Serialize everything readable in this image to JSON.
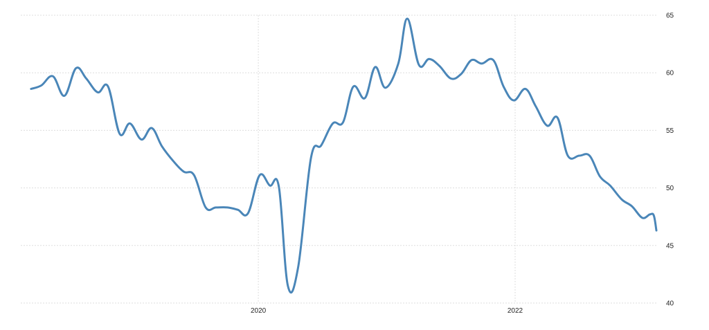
{
  "chart_data": {
    "type": "line",
    "title": "",
    "xlabel": "",
    "ylabel": "",
    "x_range": [
      2018.15,
      2023.1
    ],
    "ylim": [
      40,
      65
    ],
    "y_ticks": [
      40,
      45,
      50,
      55,
      60,
      65
    ],
    "x_ticks": [
      2020,
      2022
    ],
    "x_tick_labels": [
      "2020",
      "2022"
    ],
    "y_tick_labels": [
      "40",
      "45",
      "50",
      "55",
      "60",
      "65"
    ],
    "grid": true,
    "legend": "none",
    "colors": {
      "line": "#4a86b8",
      "grid": "#dddddd",
      "text": "#222222"
    },
    "series": [
      {
        "values": [
          [
            2018.23,
            58.6
          ],
          [
            2018.31,
            58.9
          ],
          [
            2018.4,
            59.7
          ],
          [
            2018.49,
            58.0
          ],
          [
            2018.58,
            60.4
          ],
          [
            2018.66,
            59.5
          ],
          [
            2018.75,
            58.3
          ],
          [
            2018.83,
            58.8
          ],
          [
            2018.92,
            54.7
          ],
          [
            2019.0,
            55.6
          ],
          [
            2019.09,
            54.2
          ],
          [
            2019.17,
            55.2
          ],
          [
            2019.25,
            53.6
          ],
          [
            2019.34,
            52.3
          ],
          [
            2019.42,
            51.4
          ],
          [
            2019.5,
            51.1
          ],
          [
            2019.59,
            48.3
          ],
          [
            2019.67,
            48.3
          ],
          [
            2019.76,
            48.3
          ],
          [
            2019.84,
            48.1
          ],
          [
            2019.92,
            47.8
          ],
          [
            2020.01,
            51.1
          ],
          [
            2020.09,
            50.2
          ],
          [
            2020.16,
            50.1
          ],
          [
            2020.23,
            41.5
          ],
          [
            2020.31,
            43.1
          ],
          [
            2020.41,
            52.6
          ],
          [
            2020.49,
            53.7
          ],
          [
            2020.58,
            55.6
          ],
          [
            2020.66,
            55.7
          ],
          [
            2020.74,
            58.8
          ],
          [
            2020.83,
            57.8
          ],
          [
            2020.91,
            60.5
          ],
          [
            2020.99,
            58.7
          ],
          [
            2021.09,
            60.8
          ],
          [
            2021.16,
            64.7
          ],
          [
            2021.25,
            60.7
          ],
          [
            2021.33,
            61.2
          ],
          [
            2021.41,
            60.6
          ],
          [
            2021.5,
            59.5
          ],
          [
            2021.58,
            59.9
          ],
          [
            2021.66,
            61.1
          ],
          [
            2021.74,
            60.8
          ],
          [
            2021.83,
            61.1
          ],
          [
            2021.91,
            58.8
          ],
          [
            2021.99,
            57.6
          ],
          [
            2022.08,
            58.6
          ],
          [
            2022.16,
            57.1
          ],
          [
            2022.25,
            55.4
          ],
          [
            2022.33,
            56.1
          ],
          [
            2022.41,
            52.8
          ],
          [
            2022.5,
            52.8
          ],
          [
            2022.58,
            52.8
          ],
          [
            2022.66,
            51.0
          ],
          [
            2022.74,
            50.2
          ],
          [
            2022.83,
            49.0
          ],
          [
            2022.91,
            48.4
          ],
          [
            2022.99,
            47.4
          ],
          [
            2023.05,
            47.7
          ],
          [
            2023.08,
            47.6
          ],
          [
            2023.1,
            46.3
          ]
        ]
      }
    ]
  }
}
